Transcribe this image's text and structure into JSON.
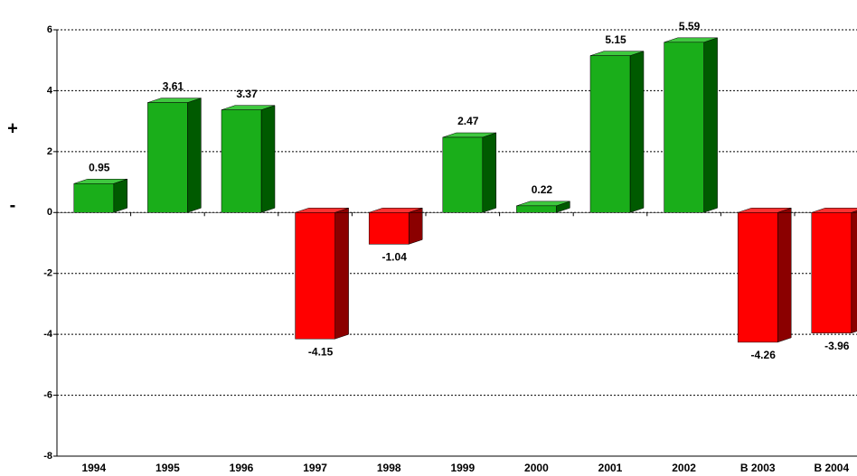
{
  "chart_data": {
    "type": "bar3d",
    "categories": [
      "1994",
      "1995",
      "1996",
      "1997",
      "1998",
      "1999",
      "2000",
      "2001",
      "2002",
      "B 2003",
      "B 2004"
    ],
    "values": [
      0.95,
      3.61,
      3.37,
      -4.15,
      -1.04,
      2.47,
      0.22,
      5.15,
      5.59,
      -4.26,
      -3.96
    ],
    "positive_color": "#1aae1a",
    "negative_color": "#ff0000",
    "ylim": [
      -8,
      6
    ],
    "yticks": [
      6,
      4,
      2,
      0,
      -2,
      -4,
      -6,
      -8
    ],
    "grid": true,
    "annotations": [
      "+",
      "-"
    ]
  }
}
